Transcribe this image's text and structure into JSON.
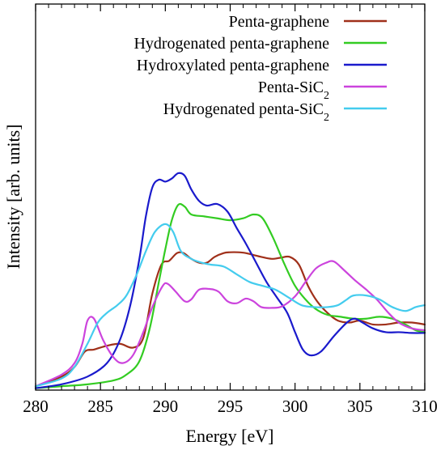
{
  "chart_data": {
    "type": "line",
    "title": "",
    "xlabel": "Energy [eV]",
    "ylabel": "Intensity [arb. units]",
    "xlim": [
      280,
      310
    ],
    "ylim": [
      0,
      1
    ],
    "x_ticks": [
      "280",
      "285",
      "290",
      "295",
      "300",
      "305",
      "310"
    ],
    "y_tick_labels": "none",
    "grid": false,
    "legend_position": "top-right",
    "series": [
      {
        "name": "Penta-graphene",
        "color": "#a0301a",
        "x": [
          280,
          282,
          283,
          283.8,
          284.5,
          285.5,
          286.5,
          287.5,
          288.3,
          289,
          289.7,
          290.3,
          290.9,
          291.4,
          292,
          292.6,
          293.2,
          293.8,
          294.5,
          295,
          295.6,
          296.2,
          296.8,
          297.4,
          298.2,
          298.9,
          299.6,
          300.3,
          301,
          301.7,
          302.5,
          303.3,
          304.2,
          305,
          306,
          307,
          308,
          309,
          310
        ],
        "y": [
          0.01,
          0.035,
          0.06,
          0.1,
          0.105,
          0.115,
          0.12,
          0.11,
          0.135,
          0.25,
          0.325,
          0.335,
          0.355,
          0.355,
          0.34,
          0.33,
          0.33,
          0.345,
          0.355,
          0.357,
          0.357,
          0.355,
          0.35,
          0.345,
          0.34,
          0.343,
          0.345,
          0.325,
          0.27,
          0.23,
          0.2,
          0.18,
          0.175,
          0.18,
          0.17,
          0.17,
          0.175,
          0.175,
          0.17
        ]
      },
      {
        "name": "Hydrogenated penta-graphene",
        "color": "#33cc22",
        "x": [
          280,
          282,
          284,
          286,
          287,
          288,
          288.8,
          289.5,
          290,
          290.5,
          291,
          291.5,
          292,
          293,
          294,
          295,
          296,
          296.8,
          297.5,
          298.3,
          299.2,
          300,
          300.8,
          301.6,
          302.5,
          303.5,
          304.5,
          305.5,
          306.5,
          307.5,
          308.5,
          309.3,
          310
        ],
        "y": [
          0.005,
          0.01,
          0.015,
          0.025,
          0.04,
          0.075,
          0.16,
          0.28,
          0.365,
          0.44,
          0.48,
          0.475,
          0.455,
          0.45,
          0.445,
          0.44,
          0.445,
          0.455,
          0.445,
          0.395,
          0.325,
          0.27,
          0.235,
          0.21,
          0.195,
          0.19,
          0.185,
          0.185,
          0.19,
          0.185,
          0.17,
          0.155,
          0.15
        ]
      },
      {
        "name": "Hydroxylated penta-graphene",
        "color": "#1a1acc",
        "x": [
          280,
          282,
          284,
          285.5,
          286.5,
          287.3,
          288,
          288.5,
          289,
          289.5,
          290,
          290.5,
          291,
          291.5,
          292,
          292.6,
          293.2,
          294,
          294.8,
          295.5,
          296.2,
          297,
          297.8,
          298.6,
          299.4,
          300,
          300.6,
          301.2,
          302,
          303,
          304,
          304.6,
          305.2,
          306,
          307,
          308,
          309,
          310
        ],
        "y": [
          0.005,
          0.015,
          0.035,
          0.07,
          0.13,
          0.22,
          0.34,
          0.45,
          0.525,
          0.545,
          0.54,
          0.548,
          0.562,
          0.555,
          0.52,
          0.49,
          0.478,
          0.482,
          0.462,
          0.42,
          0.38,
          0.33,
          0.28,
          0.24,
          0.2,
          0.15,
          0.105,
          0.09,
          0.1,
          0.14,
          0.175,
          0.185,
          0.175,
          0.16,
          0.15,
          0.15,
          0.148,
          0.148
        ]
      },
      {
        "name": "Penta-SiC2",
        "color": "#cc44dd",
        "x": [
          280,
          282,
          283,
          283.6,
          284,
          284.5,
          285.2,
          286,
          286.7,
          287.5,
          288.3,
          289,
          289.8,
          290.2,
          290.8,
          291.5,
          292,
          292.6,
          293.4,
          294.1,
          294.8,
          295.5,
          296.2,
          296.8,
          297.4,
          298.2,
          299,
          300,
          300.8,
          301.6,
          302.4,
          303,
          303.8,
          304.6,
          305.5,
          306.3,
          307.2,
          308,
          309,
          310
        ],
        "y": [
          0.01,
          0.04,
          0.07,
          0.12,
          0.18,
          0.185,
          0.13,
          0.085,
          0.07,
          0.09,
          0.15,
          0.215,
          0.27,
          0.275,
          0.255,
          0.23,
          0.235,
          0.26,
          0.262,
          0.255,
          0.23,
          0.225,
          0.237,
          0.23,
          0.215,
          0.213,
          0.217,
          0.243,
          0.28,
          0.315,
          0.33,
          0.333,
          0.31,
          0.285,
          0.26,
          0.235,
          0.2,
          0.175,
          0.16,
          0.155
        ]
      },
      {
        "name": "Hydrogenated penta-SiC2",
        "color": "#44ccee",
        "x": [
          280,
          282,
          283,
          284,
          284.8,
          285.5,
          286.3,
          287,
          287.8,
          288.5,
          289.2,
          290,
          290.6,
          291.2,
          292,
          292.8,
          293.5,
          294.5,
          295.5,
          296.5,
          297.5,
          298.5,
          299.5,
          300.5,
          301.5,
          302.5,
          303.3,
          304,
          304.5,
          305.5,
          306.5,
          307.5,
          308.5,
          309.3,
          310
        ],
        "y": [
          0.01,
          0.03,
          0.06,
          0.12,
          0.175,
          0.2,
          0.22,
          0.245,
          0.3,
          0.36,
          0.41,
          0.43,
          0.41,
          0.36,
          0.34,
          0.33,
          0.325,
          0.32,
          0.3,
          0.28,
          0.27,
          0.26,
          0.24,
          0.22,
          0.215,
          0.215,
          0.22,
          0.235,
          0.245,
          0.245,
          0.235,
          0.215,
          0.205,
          0.215,
          0.22
        ]
      }
    ]
  }
}
